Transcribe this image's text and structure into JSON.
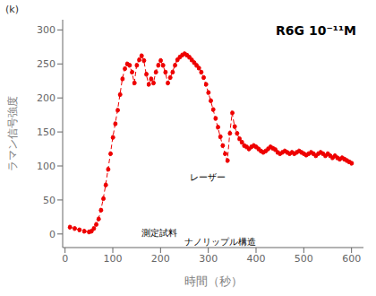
{
  "chart_data": {
    "type": "line",
    "title": "R6G 10⁻¹¹M",
    "xlabel": "時間（秒）",
    "ylabel": "ラマン信号強度",
    "annotations": [
      "(k)",
      "レーザー",
      "測定試料",
      "ナノリップル構造"
    ],
    "x": [
      10,
      20,
      30,
      40,
      50,
      55,
      60,
      65,
      70,
      75,
      80,
      85,
      90,
      95,
      100,
      105,
      110,
      115,
      120,
      125,
      130,
      135,
      140,
      145,
      150,
      155,
      160,
      165,
      170,
      175,
      180,
      185,
      190,
      195,
      200,
      205,
      210,
      215,
      220,
      225,
      230,
      235,
      240,
      245,
      250,
      255,
      260,
      265,
      270,
      275,
      280,
      285,
      290,
      295,
      300,
      305,
      310,
      315,
      320,
      325,
      330,
      335,
      340,
      345,
      350,
      355,
      360,
      365,
      370,
      375,
      380,
      385,
      390,
      395,
      400,
      405,
      410,
      415,
      420,
      425,
      430,
      435,
      440,
      445,
      450,
      455,
      460,
      465,
      470,
      475,
      480,
      485,
      490,
      495,
      500,
      505,
      510,
      515,
      520,
      525,
      530,
      535,
      540,
      545,
      550,
      555,
      560,
      565,
      570,
      575,
      580,
      585,
      590,
      595,
      600
    ],
    "values": [
      10,
      8,
      6,
      4,
      3,
      4,
      8,
      14,
      22,
      35,
      52,
      72,
      95,
      118,
      142,
      162,
      182,
      205,
      228,
      243,
      250,
      248,
      238,
      222,
      248,
      256,
      262,
      255,
      235,
      220,
      228,
      222,
      238,
      248,
      255,
      248,
      238,
      222,
      230,
      238,
      248,
      256,
      260,
      263,
      265,
      263,
      260,
      256,
      252,
      248,
      244,
      238,
      230,
      220,
      208,
      196,
      183,
      170,
      157,
      143,
      130,
      118,
      108,
      148,
      178,
      158,
      148,
      140,
      135,
      130,
      128,
      125,
      128,
      130,
      128,
      125,
      122,
      120,
      122,
      125,
      128,
      126,
      124,
      120,
      118,
      120,
      122,
      120,
      118,
      120,
      118,
      120,
      122,
      120,
      118,
      116,
      118,
      120,
      118,
      115,
      118,
      120,
      118,
      115,
      118,
      115,
      112,
      115,
      112,
      110,
      112,
      110,
      108,
      106,
      104
    ],
    "color": "#ee0000",
    "marker": "o",
    "line_style": "dashed",
    "xlim": [
      -5,
      625
    ],
    "ylim": [
      -20,
      315
    ],
    "xticks": [
      0,
      100,
      200,
      300,
      400,
      500,
      600
    ],
    "yticks": [
      0,
      50,
      100,
      150,
      200,
      250,
      300
    ],
    "grid": false
  }
}
